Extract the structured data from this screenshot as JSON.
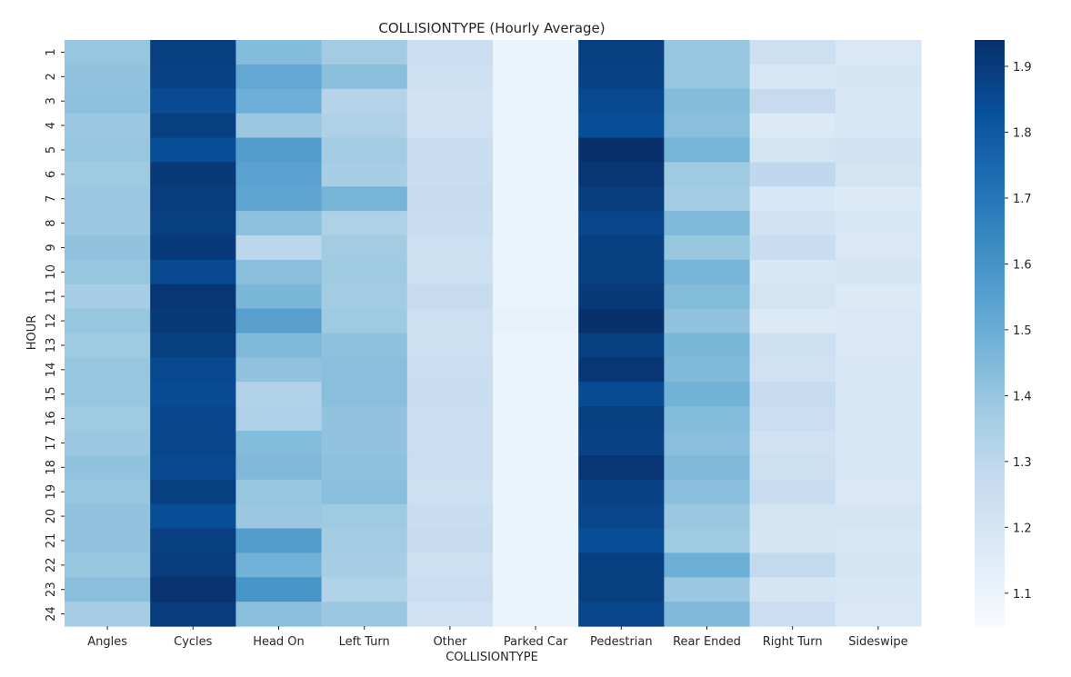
{
  "chart_data": {
    "type": "heatmap",
    "title": "COLLISIONTYPE (Hourly Average)",
    "xlabel": "COLLISIONTYPE",
    "ylabel": "HOUR",
    "x_categories": [
      "Angles",
      "Cycles",
      "Head On",
      "Left Turn",
      "Other",
      "Parked Car",
      "Pedestrian",
      "Rear Ended",
      "Right Turn",
      "Sideswipe"
    ],
    "y_categories": [
      "1",
      "2",
      "3",
      "4",
      "5",
      "6",
      "7",
      "8",
      "9",
      "10",
      "11",
      "12",
      "13",
      "14",
      "15",
      "16",
      "17",
      "18",
      "19",
      "20",
      "21",
      "22",
      "23",
      "24"
    ],
    "values": [
      [
        1.4,
        1.89,
        1.44,
        1.37,
        1.25,
        1.1,
        1.89,
        1.4,
        1.24,
        1.18
      ],
      [
        1.41,
        1.88,
        1.52,
        1.43,
        1.24,
        1.11,
        1.88,
        1.4,
        1.19,
        1.2
      ],
      [
        1.42,
        1.85,
        1.49,
        1.32,
        1.22,
        1.11,
        1.86,
        1.44,
        1.27,
        1.19
      ],
      [
        1.39,
        1.89,
        1.39,
        1.34,
        1.23,
        1.11,
        1.84,
        1.43,
        1.17,
        1.19
      ],
      [
        1.4,
        1.84,
        1.56,
        1.37,
        1.26,
        1.1,
        1.94,
        1.47,
        1.21,
        1.22
      ],
      [
        1.38,
        1.91,
        1.54,
        1.36,
        1.26,
        1.1,
        1.92,
        1.38,
        1.29,
        1.21
      ],
      [
        1.39,
        1.9,
        1.53,
        1.47,
        1.27,
        1.1,
        1.9,
        1.37,
        1.19,
        1.17
      ],
      [
        1.39,
        1.89,
        1.42,
        1.34,
        1.26,
        1.1,
        1.87,
        1.45,
        1.22,
        1.19
      ],
      [
        1.41,
        1.91,
        1.3,
        1.37,
        1.24,
        1.1,
        1.89,
        1.4,
        1.26,
        1.18
      ],
      [
        1.4,
        1.86,
        1.43,
        1.38,
        1.24,
        1.11,
        1.89,
        1.47,
        1.19,
        1.2
      ],
      [
        1.36,
        1.92,
        1.46,
        1.37,
        1.27,
        1.11,
        1.91,
        1.44,
        1.21,
        1.17
      ],
      [
        1.4,
        1.91,
        1.55,
        1.38,
        1.24,
        1.12,
        1.96,
        1.41,
        1.17,
        1.18
      ],
      [
        1.38,
        1.89,
        1.45,
        1.42,
        1.24,
        1.1,
        1.89,
        1.46,
        1.24,
        1.18
      ],
      [
        1.4,
        1.86,
        1.41,
        1.43,
        1.25,
        1.1,
        1.92,
        1.45,
        1.23,
        1.19
      ],
      [
        1.4,
        1.85,
        1.33,
        1.43,
        1.26,
        1.1,
        1.85,
        1.48,
        1.27,
        1.19
      ],
      [
        1.38,
        1.87,
        1.34,
        1.41,
        1.25,
        1.1,
        1.89,
        1.44,
        1.25,
        1.19
      ],
      [
        1.39,
        1.87,
        1.44,
        1.41,
        1.25,
        1.1,
        1.88,
        1.43,
        1.23,
        1.19
      ],
      [
        1.41,
        1.86,
        1.45,
        1.42,
        1.25,
        1.1,
        1.92,
        1.45,
        1.24,
        1.19
      ],
      [
        1.4,
        1.89,
        1.4,
        1.43,
        1.24,
        1.1,
        1.88,
        1.43,
        1.26,
        1.18
      ],
      [
        1.41,
        1.84,
        1.39,
        1.38,
        1.26,
        1.1,
        1.87,
        1.39,
        1.21,
        1.2
      ],
      [
        1.41,
        1.89,
        1.56,
        1.37,
        1.27,
        1.1,
        1.84,
        1.38,
        1.2,
        1.19
      ],
      [
        1.4,
        1.9,
        1.48,
        1.36,
        1.24,
        1.1,
        1.89,
        1.49,
        1.28,
        1.2
      ],
      [
        1.43,
        1.93,
        1.59,
        1.33,
        1.25,
        1.1,
        1.89,
        1.39,
        1.2,
        1.19
      ],
      [
        1.36,
        1.9,
        1.43,
        1.39,
        1.23,
        1.1,
        1.87,
        1.45,
        1.25,
        1.18
      ]
    ],
    "colorbar": {
      "min": 1.05,
      "max": 1.94,
      "ticks": [
        "1.1",
        "1.2",
        "1.3",
        "1.4",
        "1.5",
        "1.6",
        "1.7",
        "1.8",
        "1.9"
      ],
      "tick_values": [
        1.1,
        1.2,
        1.3,
        1.4,
        1.5,
        1.6,
        1.7,
        1.8,
        1.9
      ],
      "colormap": "Blues",
      "stops": [
        "#f7fbff",
        "#deebf7",
        "#c6dbef",
        "#9ecae1",
        "#6baed6",
        "#4292c6",
        "#2171b5",
        "#08519c",
        "#08306b"
      ]
    },
    "grid": false,
    "legend": "colorbar-right"
  }
}
